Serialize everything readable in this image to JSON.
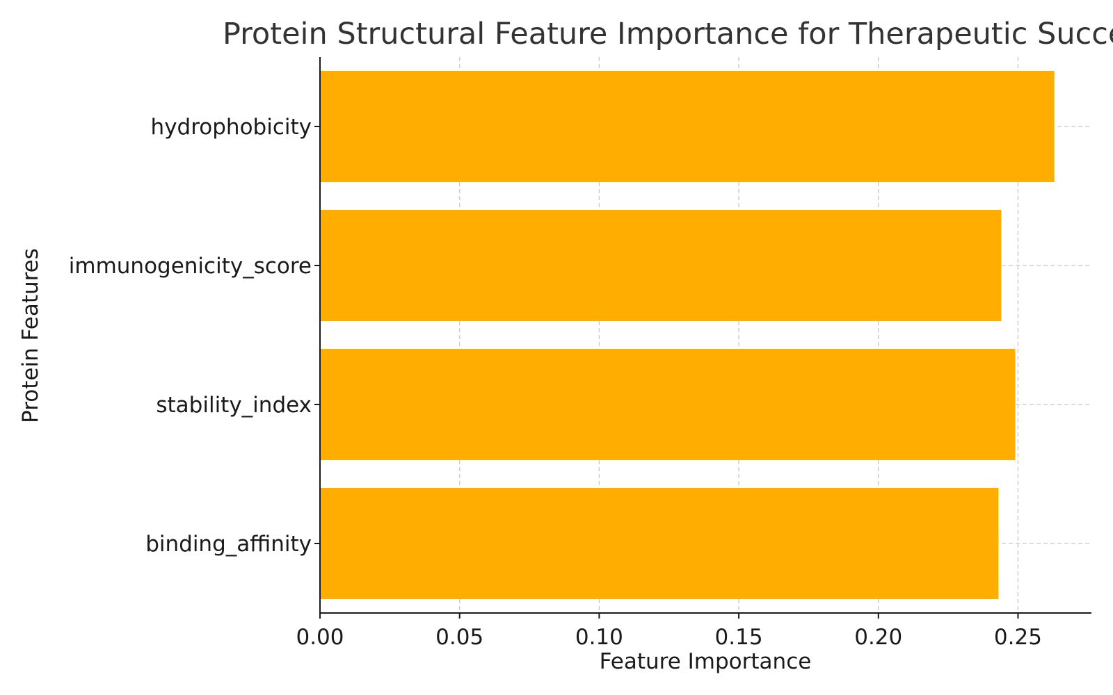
{
  "chart_data": {
    "type": "bar",
    "orientation": "horizontal",
    "title": "Protein Structural Feature Importance for Therapeutic Success",
    "xlabel": "Feature Importance",
    "ylabel": "Protein Features",
    "categories": [
      "hydrophobicity",
      "immunogenicity_score",
      "stability_index",
      "binding_affinity"
    ],
    "values": [
      0.263,
      0.244,
      0.249,
      0.243
    ],
    "xlim": [
      0.0,
      0.2763
    ],
    "xticks": [
      0.0,
      0.05,
      0.1,
      0.15,
      0.2,
      0.25
    ],
    "xtick_labels": [
      "0.00",
      "0.05",
      "0.10",
      "0.15",
      "0.20",
      "0.25"
    ],
    "grid": true,
    "bar_color": "#FFAE00"
  }
}
